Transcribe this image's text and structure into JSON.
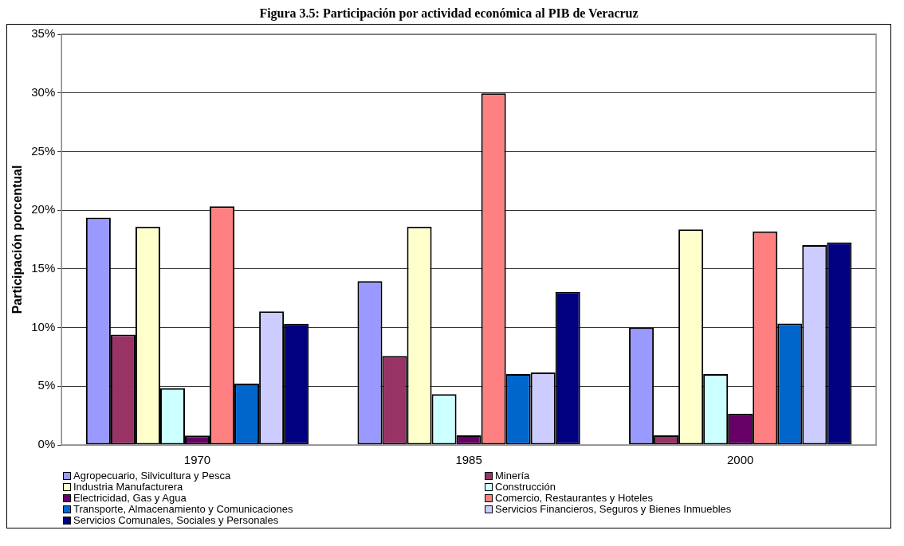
{
  "chart_data": {
    "type": "bar",
    "title": "Figura 3.5: Participación por actividad económica al PIB de Veracruz",
    "ylabel": "Participación porcentual",
    "categories": [
      "1970",
      "1985",
      "2000"
    ],
    "series": [
      {
        "name": "Agropecuario, Silvicultura y Pesca",
        "color": "#9999ff",
        "values": [
          19.36,
          13.95,
          10.01
        ]
      },
      {
        "name": "Minería",
        "color": "#993366",
        "values": [
          9.39,
          7.58,
          0.81
        ]
      },
      {
        "name": "Industria Manufacturera",
        "color": "#ffffcc",
        "values": [
          18.6,
          18.6,
          18.36
        ]
      },
      {
        "name": "Construcción",
        "color": "#ccffff",
        "values": [
          4.84,
          4.32,
          6.03
        ]
      },
      {
        "name": "Electricidad, Gas y Agua",
        "color": "#660066",
        "values": [
          0.79,
          0.81,
          2.67
        ]
      },
      {
        "name": "Comercio, Restaurantes y Hoteles",
        "color": "#ff8080",
        "values": [
          20.34,
          29.97,
          18.19
        ]
      },
      {
        "name": "Transporte, Almacenamiento y Comunicaciones",
        "color": "#0066cc",
        "values": [
          5.22,
          6.03,
          10.35
        ]
      },
      {
        "name": "Servicios Financieros, Seguros y Bienes Inmuebles",
        "color": "#ccccff",
        "values": [
          11.37,
          6.18,
          17.02
        ]
      },
      {
        "name": "Servicios Comunales, Sociales y Personales",
        "color": "#000080",
        "values": [
          10.32,
          13.04,
          17.26
        ]
      }
    ],
    "ylim": [
      0,
      35
    ],
    "yticks": [
      {
        "value": 0,
        "label": "0%"
      },
      {
        "value": 5,
        "label": "5%"
      },
      {
        "value": 10,
        "label": "10%"
      },
      {
        "value": 15,
        "label": "15%"
      },
      {
        "value": 20,
        "label": "20%"
      },
      {
        "value": 25,
        "label": "25%"
      },
      {
        "value": 30,
        "label": "30%"
      },
      {
        "value": 35,
        "label": "35%"
      }
    ],
    "grid": "y",
    "legend": "bottom"
  }
}
